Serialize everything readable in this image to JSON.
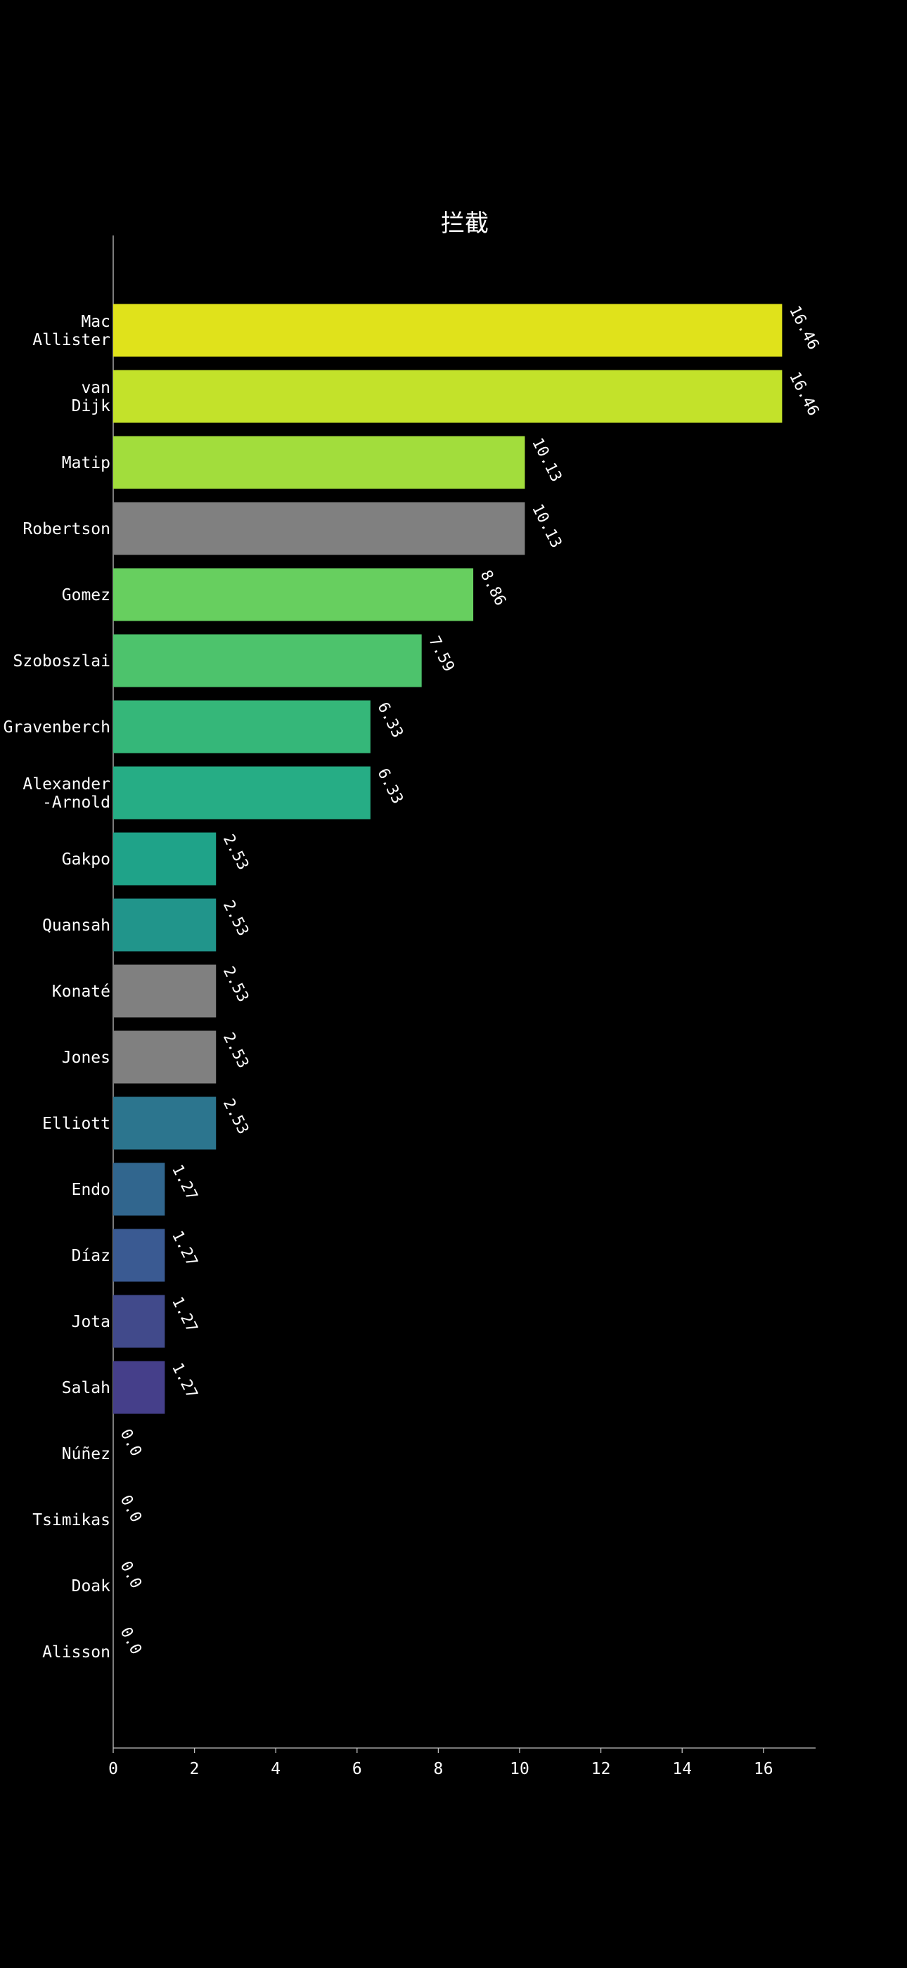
{
  "chart_data": {
    "type": "bar",
    "orientation": "horizontal",
    "title": "拦截",
    "xlabel": "",
    "ylabel": "",
    "xlim": [
      0,
      17.3
    ],
    "xticks": [
      0,
      2,
      4,
      6,
      8,
      10,
      12,
      14,
      16
    ],
    "grid": false,
    "categories": [
      "Mac\nAllister",
      "van\nDijk",
      "Matip",
      "Robertson",
      "Gomez",
      "Szoboszlai",
      "Gravenberch",
      "Alexander\n-Arnold",
      "Gakpo",
      "Quansah",
      "Konaté",
      "Jones",
      "Elliott",
      "Endo",
      "Díaz",
      "Jota",
      "Salah",
      "Núñez",
      "Tsimikas",
      "Doak",
      "Alisson"
    ],
    "values": [
      16.46,
      16.46,
      10.13,
      10.13,
      8.86,
      7.59,
      6.33,
      6.33,
      2.53,
      2.53,
      2.53,
      2.53,
      2.53,
      1.27,
      1.27,
      1.27,
      1.27,
      0.0,
      0.0,
      0.0,
      0.0
    ],
    "value_labels": [
      "16.46",
      "16.46",
      "10.13",
      "10.13",
      "8.86",
      "7.59",
      "6.33",
      "6.33",
      "2.53",
      "2.53",
      "2.53",
      "2.53",
      "2.53",
      "1.27",
      "1.27",
      "1.27",
      "1.27",
      "0.0",
      "0.0",
      "0.0",
      "0.0"
    ],
    "colors": [
      "#e0e21b",
      "#c3e22a",
      "#a2dd3c",
      "#808080",
      "#67cf5f",
      "#4dc36c",
      "#35b779",
      "#26ad85",
      "#1fa389",
      "#21958b",
      "#808080",
      "#808080",
      "#2c758e",
      "#31668e",
      "#3a5a92",
      "#414a8b",
      "#453f8a",
      "#482173",
      "#470f62",
      "#46085d",
      "#440154"
    ]
  },
  "style": {
    "background": "#000000",
    "text_color": "#ffffff",
    "axis_color": "#bfbfbf"
  }
}
